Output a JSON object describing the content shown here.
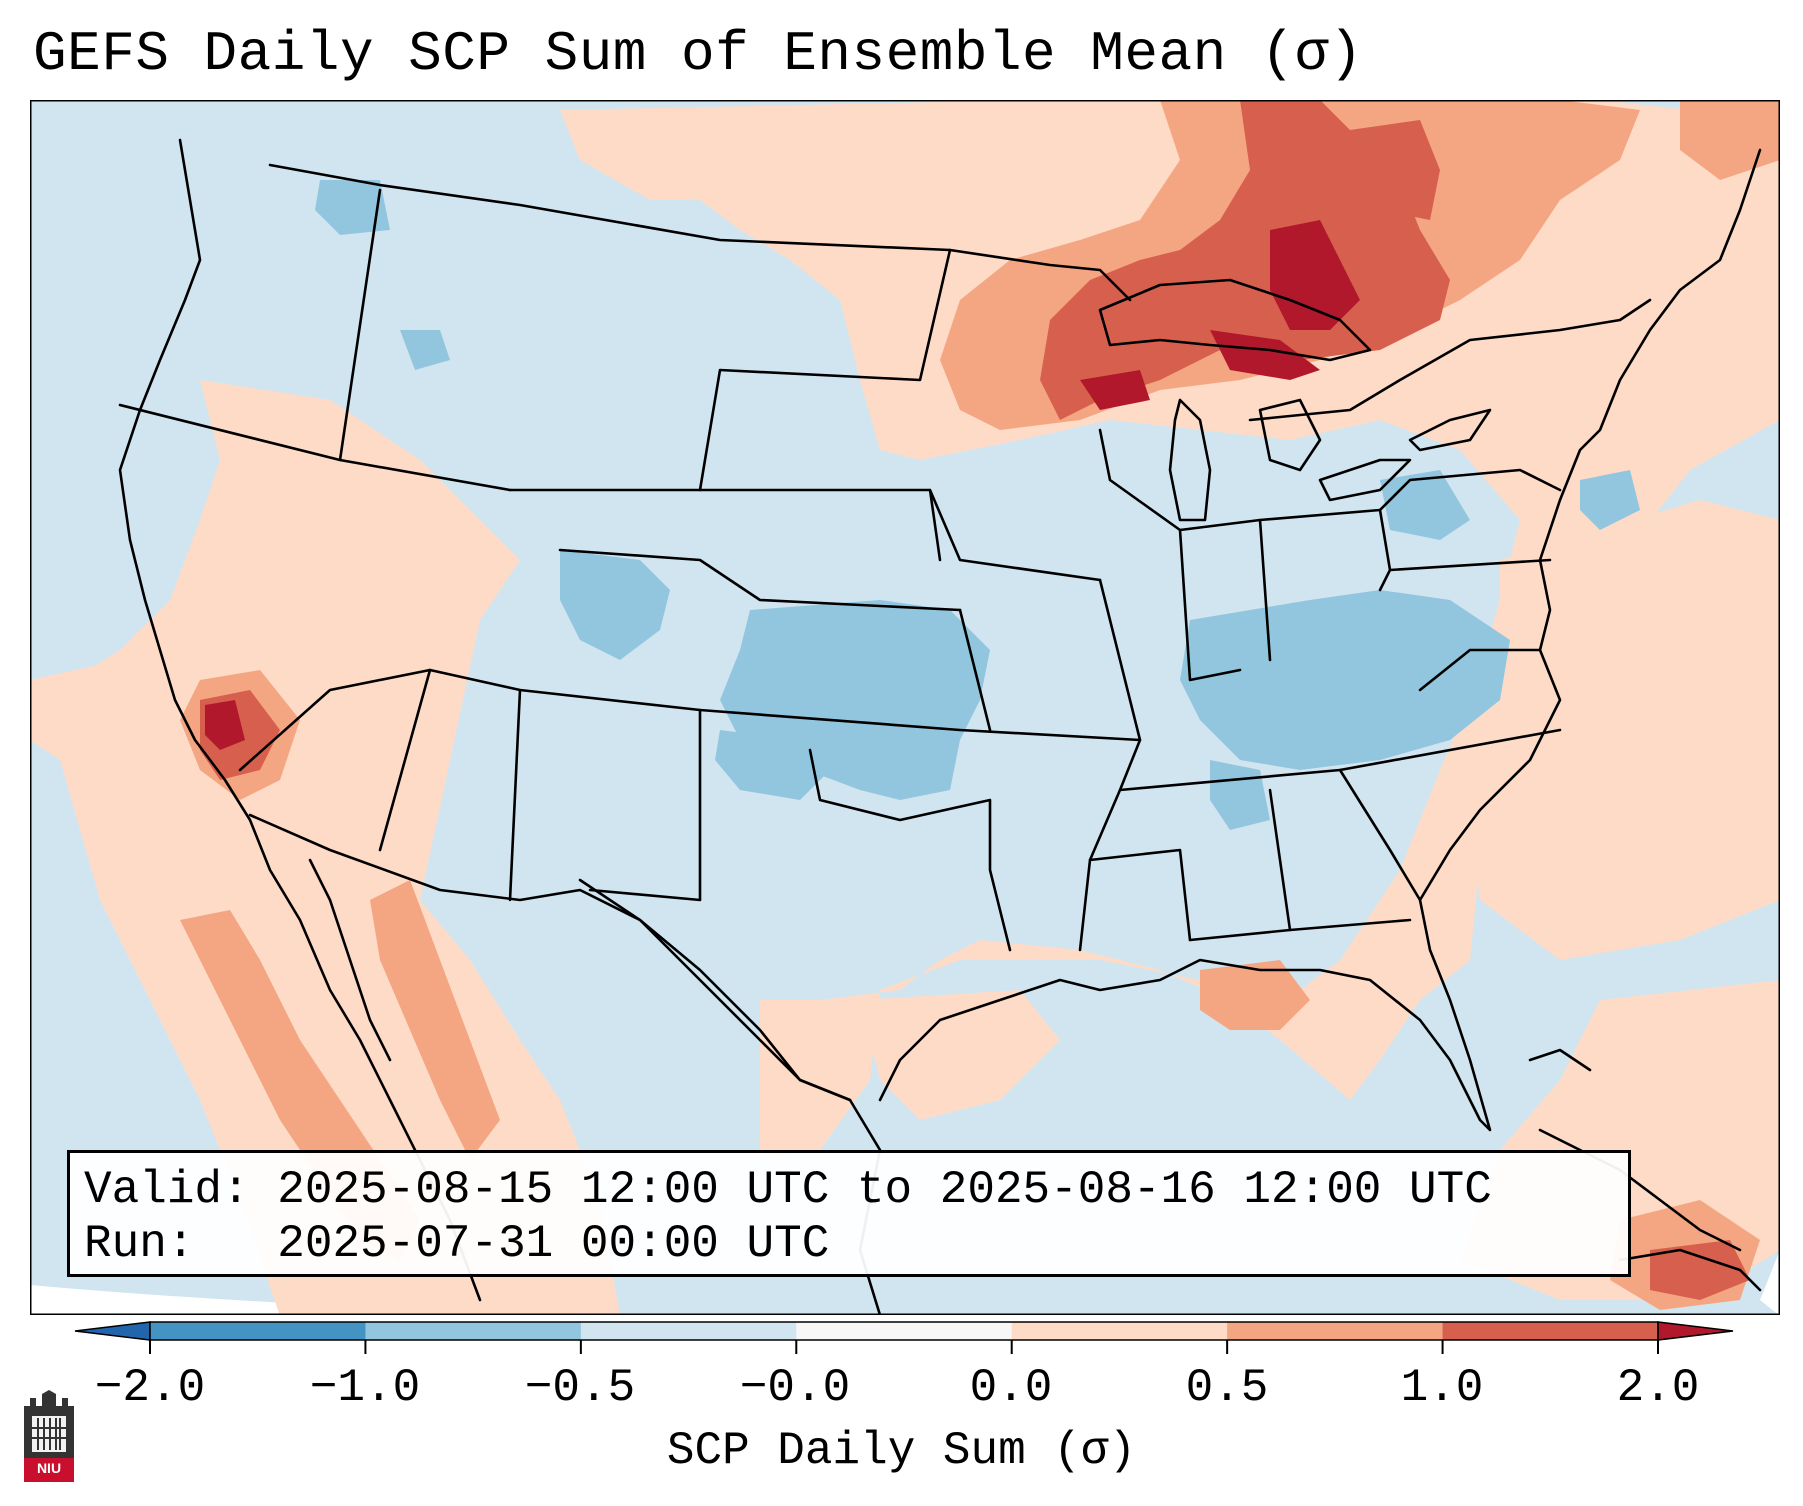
{
  "title": "GEFS Daily SCP Sum of Ensemble Mean (σ)",
  "info": {
    "valid_line": "Valid: 2025-08-15 12:00 UTC to 2025-08-16 12:00 UTC",
    "run_line": "Run:   2025-07-31 00:00 UTC"
  },
  "colorbar": {
    "label": "SCP Daily Sum (σ)",
    "ticks": [
      "−2.0",
      "−1.0",
      "−0.5",
      "−0.0",
      "0.0",
      "0.5",
      "1.0",
      "2.0"
    ],
    "bin_colors": [
      "#4393c3",
      "#92c5de",
      "#d1e5f0",
      "#f7f7f7",
      "#fddbc7",
      "#f4a582",
      "#d6604d"
    ],
    "under_color": "#2166ac",
    "over_color": "#b2182b"
  },
  "logo": {
    "text": "NIU",
    "color": "#c8102e"
  },
  "map": {
    "domain": "Contiguous United States and surrounding regions",
    "base_color": "#d1e5f0",
    "outside_color": "#ffffff"
  }
}
